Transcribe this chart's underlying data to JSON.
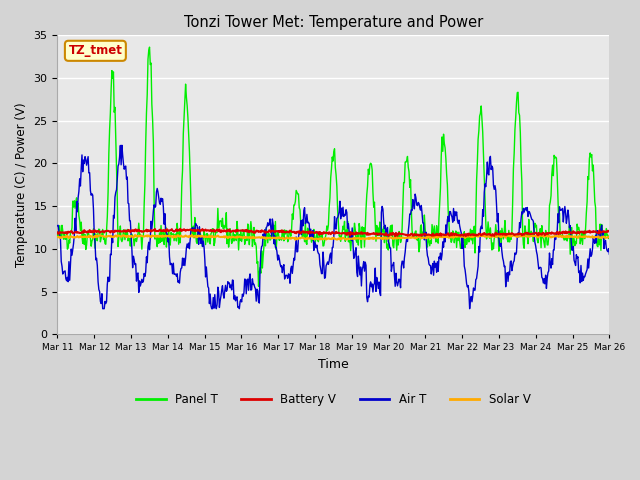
{
  "title": "Tonzi Tower Met: Temperature and Power",
  "xlabel": "Time",
  "ylabel": "Temperature (C) / Power (V)",
  "ylim": [
    0,
    35
  ],
  "yticks": [
    0,
    5,
    10,
    15,
    20,
    25,
    30,
    35
  ],
  "x_tick_days": [
    11,
    12,
    13,
    14,
    15,
    16,
    17,
    18,
    19,
    20,
    21,
    22,
    23,
    24,
    25,
    26
  ],
  "fig_bg_color": "#d4d4d4",
  "plot_bg_color": "#e8e8e8",
  "grid_color": "#ffffff",
  "colors": {
    "panel_t": "#00ee00",
    "battery_v": "#dd0000",
    "air_t": "#0000cc",
    "solar_v": "#ffaa00"
  },
  "annotation_text": "TZ_tmet",
  "annotation_bg": "#ffffcc",
  "annotation_border": "#cc8800",
  "annotation_text_color": "#cc0000",
  "legend_labels": [
    "Panel T",
    "Battery V",
    "Air T",
    "Solar V"
  ]
}
